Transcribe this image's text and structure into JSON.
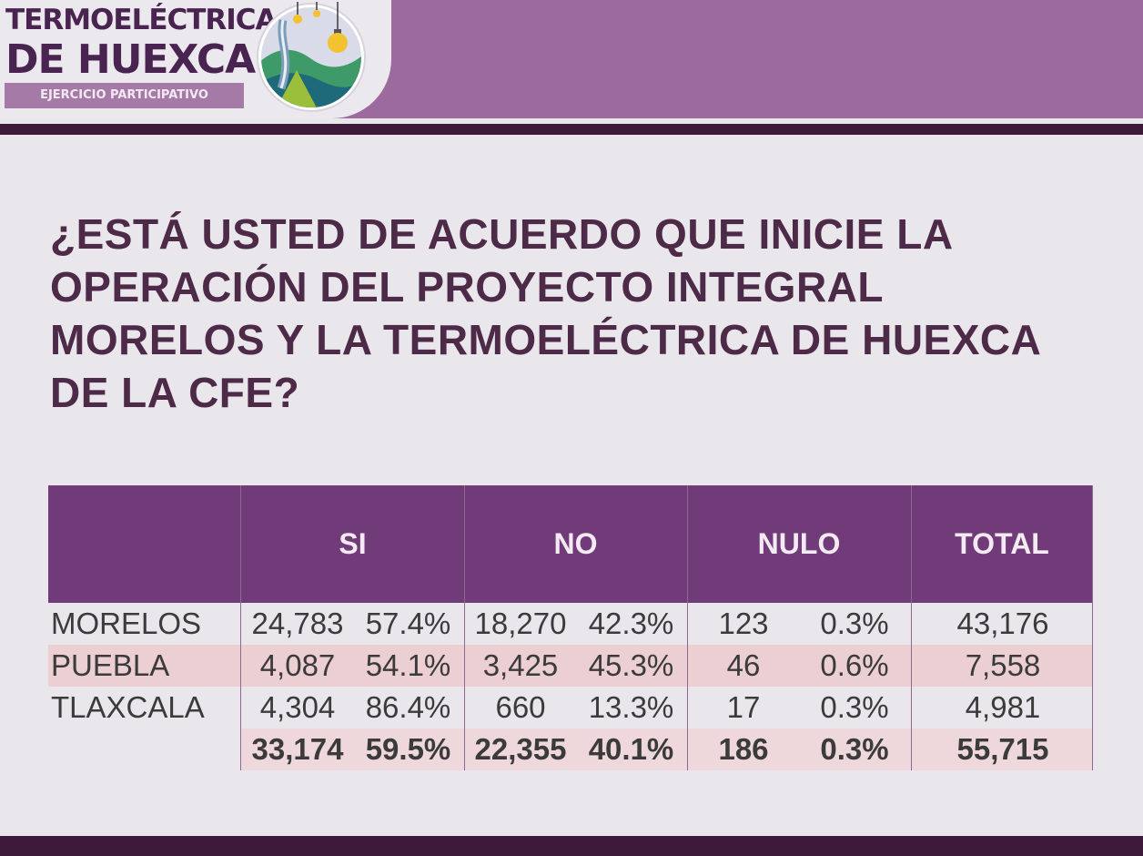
{
  "logo": {
    "line1": "TERMOELÉCTRICA",
    "line2": "DE HUEXCA",
    "tagline": "EJERCICIO PARTICIPATIVO",
    "emblem_icon": "landscape-lightbulbs-icon"
  },
  "question": "¿ESTÁ USTED DE ACUERDO QUE INICIE LA OPERACIÓN DEL PROYECTO INTEGRAL MORELOS Y LA TERMOELÉCTRICA DE HUEXCA DE LA CFE?",
  "colors": {
    "header": "#713a78",
    "banner": "#9c6a9c",
    "rule": "#3e1a3a",
    "stripe": "#eccfd3",
    "text": "#4d2a47"
  },
  "chart_data": {
    "type": "table",
    "columns": [
      "SI",
      "NO",
      "NULO",
      "TOTAL"
    ],
    "rows": [
      {
        "region": "MORELOS",
        "si": "24,783",
        "si_pct": "57.4%",
        "no": "18,270",
        "no_pct": "42.3%",
        "nulo": "123",
        "nulo_pct": "0.3%",
        "total": "43,176"
      },
      {
        "region": "PUEBLA",
        "si": "4,087",
        "si_pct": "54.1%",
        "no": "3,425",
        "no_pct": "45.3%",
        "nulo": "46",
        "nulo_pct": "0.6%",
        "total": "7,558"
      },
      {
        "region": "TLAXCALA",
        "si": "4,304",
        "si_pct": "86.4%",
        "no": "660",
        "no_pct": "13.3%",
        "nulo": "17",
        "nulo_pct": "0.3%",
        "total": "4,981"
      }
    ],
    "totals": {
      "si": "33,174",
      "si_pct": "59.5%",
      "no": "22,355",
      "no_pct": "40.1%",
      "nulo": "186",
      "nulo_pct": "0.3%",
      "total": "55,715"
    }
  }
}
